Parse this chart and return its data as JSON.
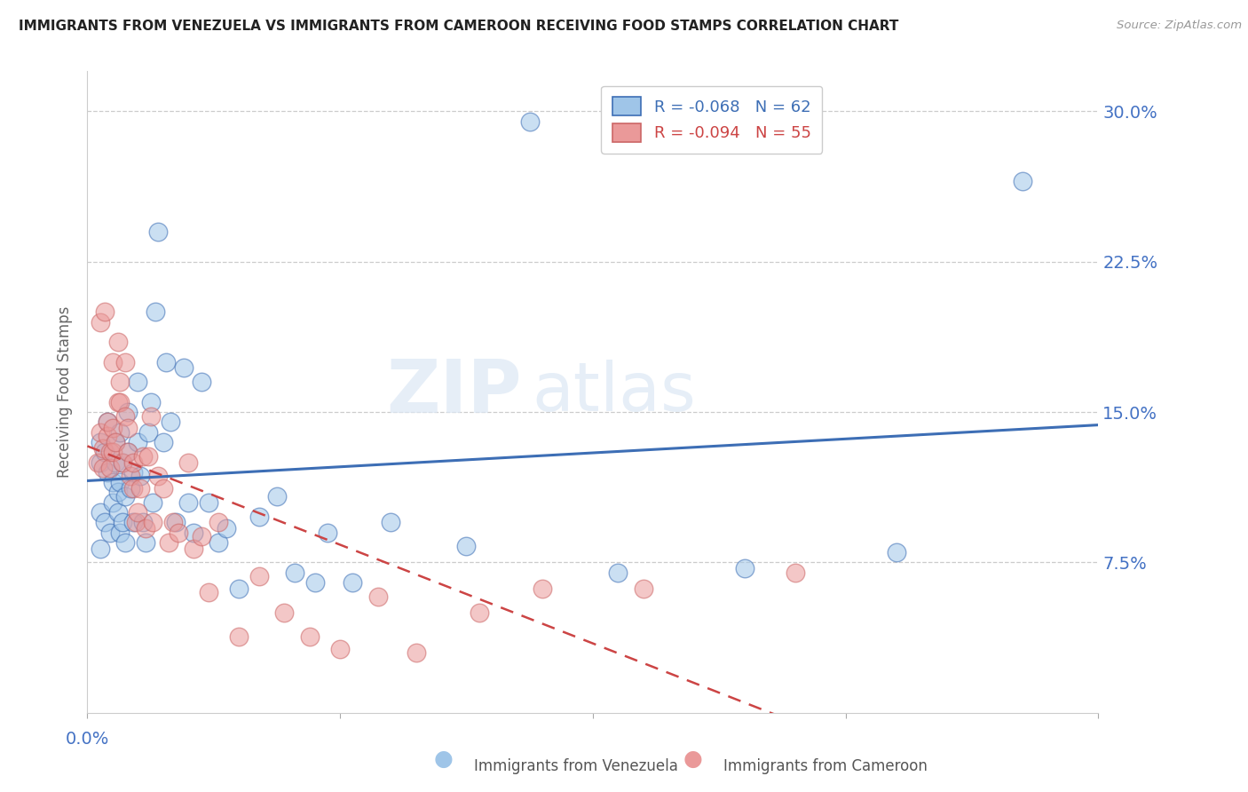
{
  "title": "IMMIGRANTS FROM VENEZUELA VS IMMIGRANTS FROM CAMEROON RECEIVING FOOD STAMPS CORRELATION CHART",
  "source": "Source: ZipAtlas.com",
  "ylabel": "Receiving Food Stamps",
  "ytick_labels": [
    "30.0%",
    "22.5%",
    "15.0%",
    "7.5%"
  ],
  "ytick_values": [
    0.3,
    0.225,
    0.15,
    0.075
  ],
  "xlim": [
    0.0,
    0.4
  ],
  "ylim": [
    0.0,
    0.32
  ],
  "watermark": "ZIPatlas",
  "blue_color": "#9fc5e8",
  "pink_color": "#ea9999",
  "trendline_blue_color": "#3d6eb5",
  "trendline_pink_color": "#cc4444",
  "legend_blue_r": "R = -0.068",
  "legend_blue_n": "N = 62",
  "legend_pink_r": "R = -0.094",
  "legend_pink_n": "N = 55",
  "venezuela_x": [
    0.005,
    0.005,
    0.005,
    0.005,
    0.007,
    0.007,
    0.008,
    0.008,
    0.009,
    0.01,
    0.01,
    0.011,
    0.011,
    0.012,
    0.012,
    0.013,
    0.013,
    0.013,
    0.014,
    0.014,
    0.015,
    0.015,
    0.016,
    0.016,
    0.017,
    0.018,
    0.018,
    0.02,
    0.02,
    0.021,
    0.022,
    0.023,
    0.024,
    0.025,
    0.026,
    0.027,
    0.028,
    0.03,
    0.031,
    0.033,
    0.035,
    0.038,
    0.04,
    0.042,
    0.045,
    0.048,
    0.052,
    0.055,
    0.06,
    0.068,
    0.075,
    0.082,
    0.09,
    0.095,
    0.105,
    0.12,
    0.15,
    0.175,
    0.21,
    0.26,
    0.32,
    0.37
  ],
  "venezuela_y": [
    0.125,
    0.135,
    0.1,
    0.082,
    0.095,
    0.13,
    0.12,
    0.145,
    0.09,
    0.105,
    0.115,
    0.125,
    0.135,
    0.1,
    0.11,
    0.09,
    0.115,
    0.14,
    0.095,
    0.125,
    0.085,
    0.108,
    0.13,
    0.15,
    0.112,
    0.095,
    0.12,
    0.135,
    0.165,
    0.118,
    0.095,
    0.085,
    0.14,
    0.155,
    0.105,
    0.2,
    0.24,
    0.135,
    0.175,
    0.145,
    0.095,
    0.172,
    0.105,
    0.09,
    0.165,
    0.105,
    0.085,
    0.092,
    0.062,
    0.098,
    0.108,
    0.07,
    0.065,
    0.09,
    0.065,
    0.095,
    0.083,
    0.295,
    0.07,
    0.072,
    0.08,
    0.265
  ],
  "cameroon_x": [
    0.004,
    0.005,
    0.005,
    0.006,
    0.006,
    0.007,
    0.008,
    0.008,
    0.009,
    0.009,
    0.01,
    0.01,
    0.01,
    0.011,
    0.012,
    0.012,
    0.013,
    0.013,
    0.014,
    0.015,
    0.015,
    0.016,
    0.016,
    0.017,
    0.018,
    0.018,
    0.019,
    0.02,
    0.021,
    0.022,
    0.023,
    0.024,
    0.025,
    0.026,
    0.028,
    0.03,
    0.032,
    0.034,
    0.036,
    0.04,
    0.042,
    0.045,
    0.048,
    0.052,
    0.06,
    0.068,
    0.078,
    0.088,
    0.1,
    0.115,
    0.13,
    0.155,
    0.18,
    0.22,
    0.28
  ],
  "cameroon_y": [
    0.125,
    0.195,
    0.14,
    0.132,
    0.122,
    0.2,
    0.138,
    0.145,
    0.13,
    0.122,
    0.175,
    0.13,
    0.142,
    0.135,
    0.185,
    0.155,
    0.165,
    0.155,
    0.125,
    0.148,
    0.175,
    0.13,
    0.142,
    0.118,
    0.112,
    0.125,
    0.095,
    0.1,
    0.112,
    0.128,
    0.092,
    0.128,
    0.148,
    0.095,
    0.118,
    0.112,
    0.085,
    0.095,
    0.09,
    0.125,
    0.082,
    0.088,
    0.06,
    0.095,
    0.038,
    0.068,
    0.05,
    0.038,
    0.032,
    0.058,
    0.03,
    0.05,
    0.062,
    0.062,
    0.07
  ]
}
